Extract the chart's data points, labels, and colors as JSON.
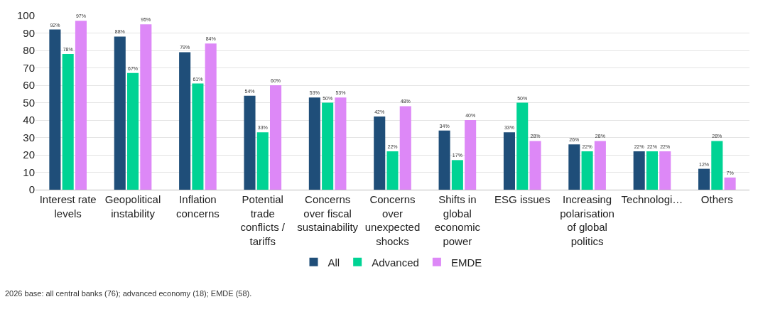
{
  "chart_data": {
    "type": "bar",
    "categories": [
      "Interest rate\nlevels",
      "Geopolitical\ninstability",
      "Inflation\nconcerns",
      "Potential\ntrade\nconflicts /\ntariffs",
      "Concerns\nover fiscal\nsustainability",
      "Concerns\nover\nunexpected\nshocks",
      "Shifts in\nglobal\neconomic\npower",
      "ESG issues",
      "Increasing\npolarisation\nof global\npolitics",
      "Technologi…",
      "Others"
    ],
    "series": [
      {
        "name": "All",
        "color": "#1f4e79",
        "values": [
          92,
          88,
          79,
          54,
          53,
          42,
          34,
          33,
          26,
          22,
          12
        ],
        "value_labels": [
          "92%",
          "88%",
          "79%",
          "54%",
          "53%",
          "42%",
          "34%",
          "33%",
          "26%",
          "22%",
          "12%"
        ]
      },
      {
        "name": "Advanced",
        "color": "#00d394",
        "values": [
          78,
          67,
          61,
          33,
          50,
          22,
          17,
          50,
          22,
          22,
          28
        ],
        "value_labels": [
          "78%",
          "67%",
          "61%",
          "33%",
          "50%",
          "22%",
          "17%",
          "50%",
          "22%",
          "22%",
          "28%"
        ]
      },
      {
        "name": "EMDE",
        "color": "#dd88f7",
        "values": [
          97,
          95,
          84,
          60,
          53,
          48,
          40,
          28,
          28,
          22,
          7
        ],
        "value_labels": [
          "97%",
          "95%",
          "84%",
          "60%",
          "53%",
          "48%",
          "40%",
          "28%",
          "28%",
          "22%",
          "7%"
        ]
      }
    ],
    "ylim": [
      0,
      100
    ],
    "yticks": [
      0,
      10,
      20,
      30,
      40,
      50,
      60,
      70,
      80,
      90,
      100
    ],
    "grid": "y",
    "legend": "bottom",
    "annotations": [
      "2026 base: all central banks (76); advanced economy (18); EMDE (58)."
    ]
  }
}
